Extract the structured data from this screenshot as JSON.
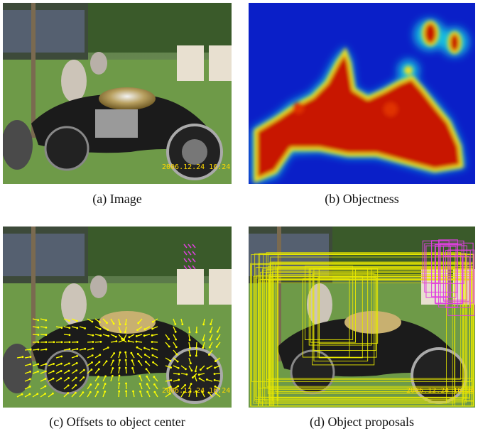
{
  "figure": {
    "panels": [
      {
        "id": "a",
        "caption": "(a) Image",
        "timestamp": "2006.12.24 16:24"
      },
      {
        "id": "b",
        "caption": "(b) Objectness"
      },
      {
        "id": "c",
        "caption": "(c) Offsets to object center",
        "timestamp": "2006.12.24 16:24"
      },
      {
        "id": "d",
        "caption": "(d) Object proposals",
        "timestamp": "2006.12.24 16:24"
      }
    ],
    "colors": {
      "heatmap_low": "#0a1fc8",
      "heatmap_high": "#c81400",
      "arrow": "#ffff00",
      "proposal_primary": "#e8e800",
      "proposal_secondary": "#e040e0"
    }
  }
}
